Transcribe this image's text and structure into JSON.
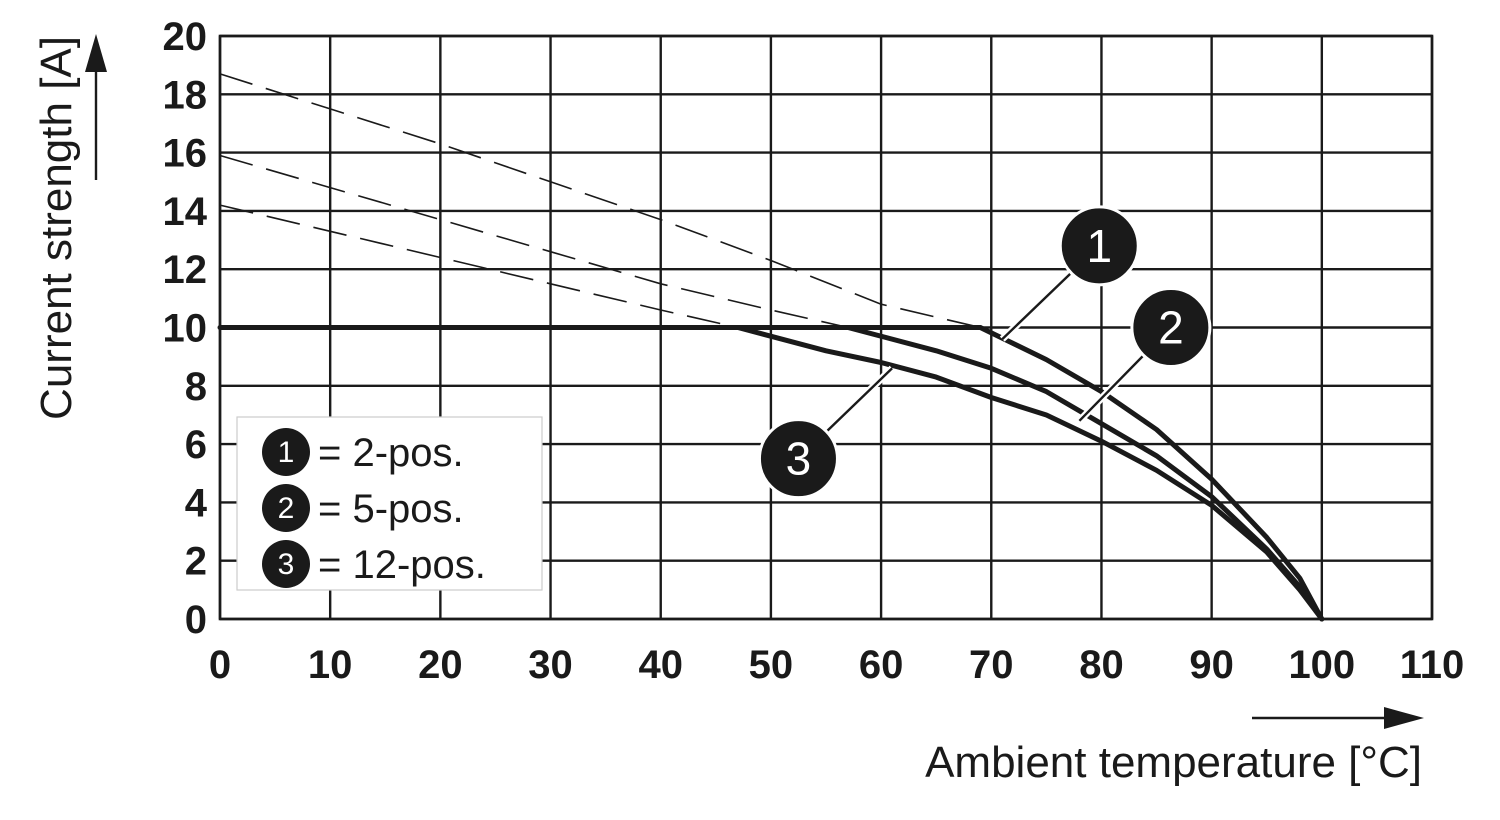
{
  "chart_data": {
    "type": "line",
    "xlabel": "Ambient temperature [°C]",
    "ylabel": "Current strength [A]",
    "xlim": [
      0,
      110
    ],
    "ylim": [
      0,
      20
    ],
    "x_ticks": [
      "0",
      "10",
      "20",
      "30",
      "40",
      "50",
      "60",
      "70",
      "80",
      "90",
      "100",
      "110"
    ],
    "y_ticks": [
      "0",
      "2",
      "4",
      "6",
      "8",
      "10",
      "12",
      "14",
      "16",
      "18",
      "20"
    ],
    "grid": true,
    "legend": {
      "placement": "bottom-left",
      "items": [
        {
          "marker": "1",
          "text": "= 2-pos."
        },
        {
          "marker": "2",
          "text": "= 5-pos."
        },
        {
          "marker": "3",
          "text": "= 12-pos."
        }
      ]
    },
    "limit_line": {
      "y": 10,
      "x_range": [
        0,
        69
      ]
    },
    "series": [
      {
        "marker": "1",
        "extrapolated_dashed": {
          "x": [
            0,
            10,
            20,
            30,
            40,
            50,
            60,
            69
          ],
          "y": [
            18.7,
            17.5,
            16.3,
            15.0,
            13.7,
            12.3,
            10.8,
            10.0
          ]
        },
        "derated": {
          "x": [
            69,
            75,
            80,
            85,
            90,
            95,
            98,
            100
          ],
          "y": [
            10.0,
            8.9,
            7.8,
            6.5,
            4.8,
            2.8,
            1.4,
            0.0
          ]
        }
      },
      {
        "marker": "2",
        "extrapolated_dashed": {
          "x": [
            0,
            10,
            20,
            30,
            40,
            50,
            57
          ],
          "y": [
            15.9,
            14.8,
            13.7,
            12.6,
            11.5,
            10.6,
            10.0
          ]
        },
        "derated": {
          "x": [
            57,
            65,
            70,
            75,
            80,
            85,
            90,
            95,
            98,
            100
          ],
          "y": [
            10.0,
            9.2,
            8.6,
            7.8,
            6.7,
            5.6,
            4.2,
            2.4,
            1.1,
            0.0
          ]
        }
      },
      {
        "marker": "3",
        "extrapolated_dashed": {
          "x": [
            0,
            10,
            20,
            30,
            40,
            47
          ],
          "y": [
            14.2,
            13.3,
            12.4,
            11.5,
            10.6,
            10.0
          ]
        },
        "derated": {
          "x": [
            47,
            55,
            60,
            65,
            70,
            75,
            80,
            85,
            90,
            95,
            98,
            100
          ],
          "y": [
            10.0,
            9.2,
            8.8,
            8.3,
            7.6,
            7.0,
            6.1,
            5.1,
            3.9,
            2.3,
            1.0,
            0.0
          ]
        }
      }
    ],
    "callouts": [
      {
        "marker": "1",
        "target": {
          "x": 71,
          "y": 9.6
        },
        "label_at": {
          "x": 79.8,
          "y": 12.8
        }
      },
      {
        "marker": "2",
        "target": {
          "x": 78,
          "y": 6.8
        },
        "label_at": {
          "x": 86.3,
          "y": 10.0
        }
      },
      {
        "marker": "3",
        "target": {
          "x": 61,
          "y": 8.6
        },
        "label_at": {
          "x": 52.5,
          "y": 5.5
        }
      }
    ]
  }
}
